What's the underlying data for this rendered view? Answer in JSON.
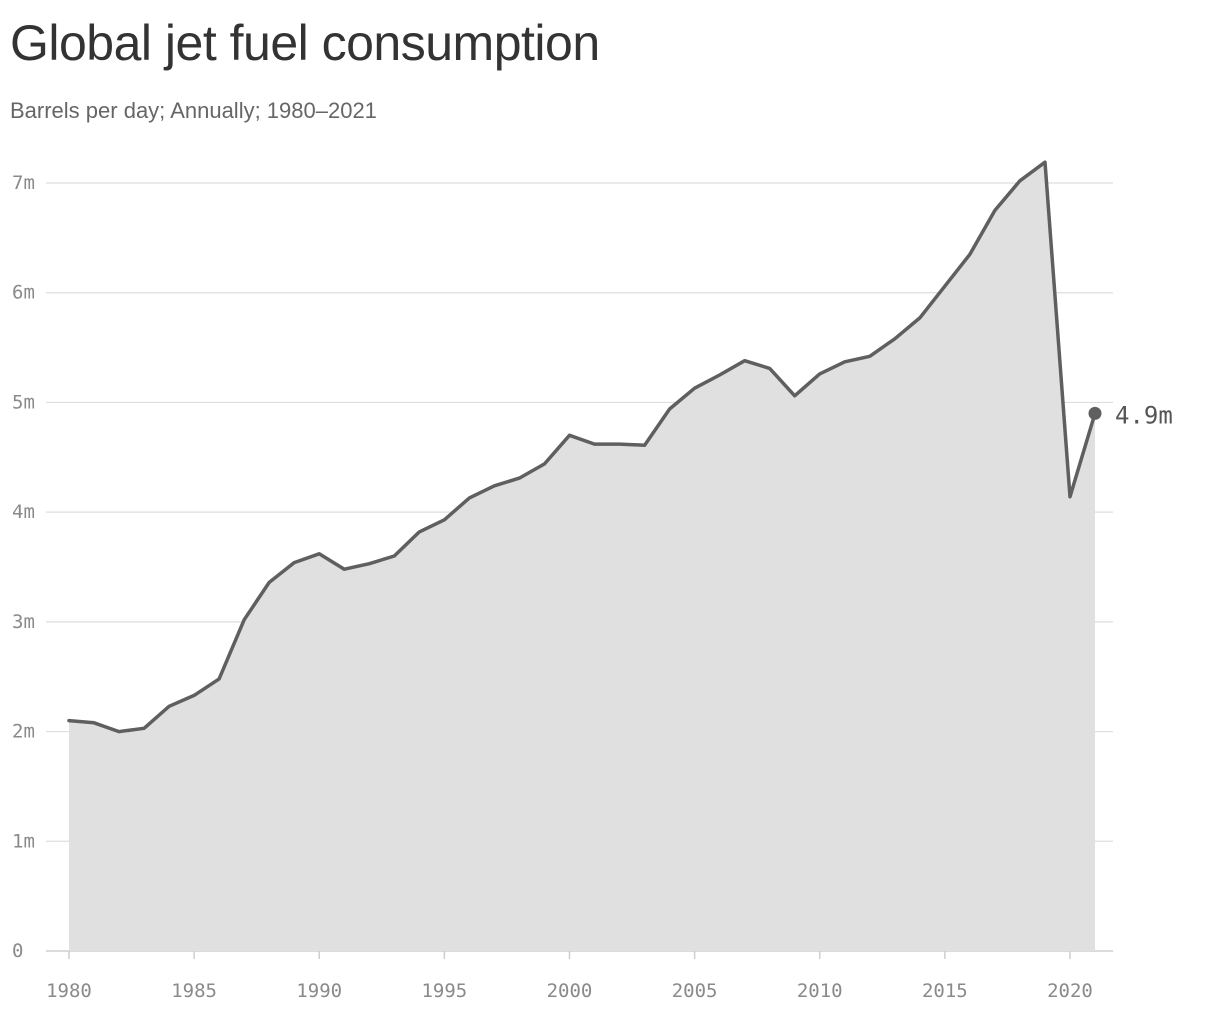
{
  "colors": {
    "line": "#5f5f5f",
    "area": "#e0e0e0",
    "grid": "#dedede",
    "axis": "#cfcfcf",
    "text": "#333333"
  },
  "chart_data": {
    "type": "area",
    "title": "Global jet fuel consumption",
    "subtitle": "Barrels per day; Annually; 1980–2021",
    "xlabel": "",
    "ylabel": "",
    "xlim": [
      1980,
      2021
    ],
    "ylim": [
      0,
      7000000
    ],
    "grid": true,
    "legend": "none",
    "x": [
      1980,
      1981,
      1982,
      1983,
      1984,
      1985,
      1986,
      1987,
      1988,
      1989,
      1990,
      1991,
      1992,
      1993,
      1994,
      1995,
      1996,
      1997,
      1998,
      1999,
      2000,
      2001,
      2002,
      2003,
      2004,
      2005,
      2006,
      2007,
      2008,
      2009,
      2010,
      2011,
      2012,
      2013,
      2014,
      2015,
      2016,
      2017,
      2018,
      2019,
      2020,
      2021
    ],
    "series": [
      {
        "values": [
          2100000,
          2080000,
          2000000,
          2030000,
          2230000,
          2330000,
          2480000,
          3020000,
          3360000,
          3540000,
          3620000,
          3480000,
          3530000,
          3600000,
          3820000,
          3930000,
          4130000,
          4240000,
          4310000,
          4440000,
          4700000,
          4620000,
          4620000,
          4610000,
          4940000,
          5130000,
          5250000,
          5380000,
          5310000,
          5060000,
          5260000,
          5370000,
          5420000,
          5580000,
          5770000,
          6060000,
          6350000,
          6750000,
          7020000,
          7190000,
          4140000,
          4900000
        ]
      }
    ],
    "y_ticks": [
      {
        "value": 0,
        "label": "0"
      },
      {
        "value": 1000000,
        "label": "1m"
      },
      {
        "value": 2000000,
        "label": "2m"
      },
      {
        "value": 3000000,
        "label": "3m"
      },
      {
        "value": 4000000,
        "label": "4m"
      },
      {
        "value": 5000000,
        "label": "5m"
      },
      {
        "value": 6000000,
        "label": "6m"
      },
      {
        "value": 7000000,
        "label": "7m"
      }
    ],
    "x_ticks": [
      {
        "value": 1980,
        "label": "1980"
      },
      {
        "value": 1985,
        "label": "1985"
      },
      {
        "value": 1990,
        "label": "1990"
      },
      {
        "value": 1995,
        "label": "1995"
      },
      {
        "value": 2000,
        "label": "2000"
      },
      {
        "value": 2005,
        "label": "2005"
      },
      {
        "value": 2010,
        "label": "2010"
      },
      {
        "value": 2015,
        "label": "2015"
      },
      {
        "value": 2020,
        "label": "2020"
      }
    ],
    "end_label": {
      "x": 2021,
      "y": 4900000,
      "label": "4.9m"
    }
  }
}
